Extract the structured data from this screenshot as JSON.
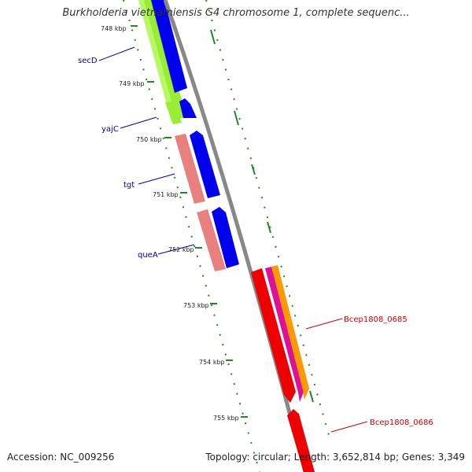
{
  "title": "Burkholderia vietnamiensis G4 chromosome 1, complete sequenc...",
  "footer": {
    "accession": "Accession: NC_009256",
    "summary": "Topology: circular; Length: 3,652,814 bp; Genes: 3,349"
  },
  "kbp_ticks": [
    "748 kbp",
    "749 kbp",
    "750 kbp",
    "751 kbp",
    "752 kbp",
    "753 kbp",
    "754 kbp",
    "755 kbp"
  ],
  "gene_labels_left": [
    "secD",
    "yajC",
    "tgt",
    "queA"
  ],
  "gene_labels_right": [
    "Bcep1808_0685",
    "Bcep1808_0686"
  ],
  "colors": {
    "backbone": "#888888",
    "cds_blue": "#0000ee",
    "gene_pink": "#e88080",
    "gene_green": "#99ee33",
    "red_feature": "#ee0000",
    "magenta_feature": "#dd1199",
    "orange_feature": "#ff9900",
    "tick_green": "#228822",
    "left_label": "#000099",
    "right_label": "#cc0000"
  }
}
